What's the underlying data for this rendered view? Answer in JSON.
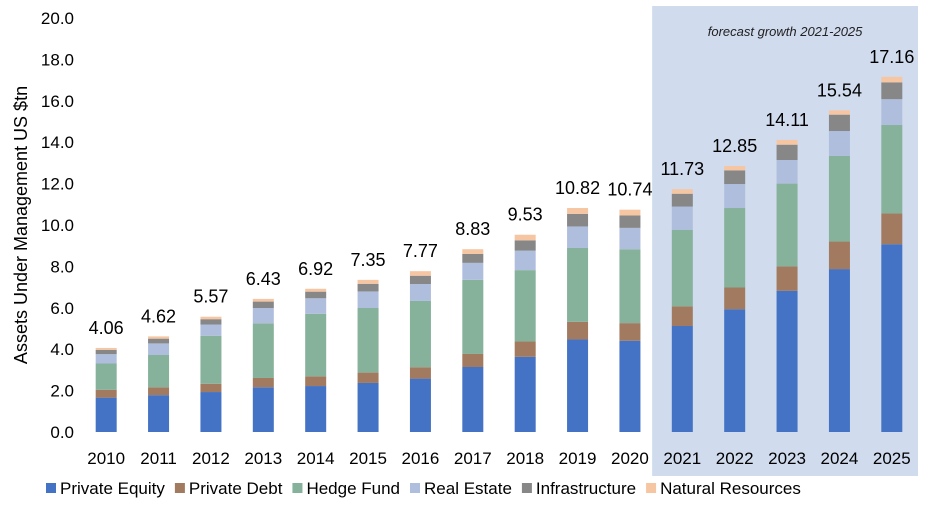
{
  "chart_data": {
    "type": "bar",
    "stacked": true,
    "categories": [
      "2010",
      "2011",
      "2012",
      "2013",
      "2014",
      "2015",
      "2016",
      "2017",
      "2018",
      "2019",
      "2020",
      "2021",
      "2022",
      "2023",
      "2024",
      "2025"
    ],
    "series": [
      {
        "name": "Private Equity",
        "color": "#4472C4",
        "values": [
          1.66,
          1.78,
          1.93,
          2.16,
          2.22,
          2.37,
          2.58,
          3.14,
          3.63,
          4.47,
          4.41,
          5.12,
          5.93,
          6.82,
          7.87,
          9.07
        ]
      },
      {
        "name": "Private Debt",
        "color": "#A17A5F",
        "values": [
          0.38,
          0.38,
          0.4,
          0.45,
          0.47,
          0.5,
          0.55,
          0.63,
          0.74,
          0.85,
          0.85,
          0.95,
          1.05,
          1.18,
          1.33,
          1.49
        ]
      },
      {
        "name": "Hedge Fund",
        "color": "#86B19A",
        "values": [
          1.27,
          1.56,
          2.32,
          2.64,
          3.02,
          3.12,
          3.2,
          3.58,
          3.45,
          3.57,
          3.57,
          3.7,
          3.84,
          4.0,
          4.14,
          4.27
        ]
      },
      {
        "name": "Real Estate",
        "color": "#AFBEDD",
        "values": [
          0.45,
          0.56,
          0.54,
          0.74,
          0.75,
          0.8,
          0.82,
          0.82,
          0.94,
          1.04,
          1.03,
          1.12,
          1.16,
          1.14,
          1.2,
          1.25
        ]
      },
      {
        "name": "Infrastructure",
        "color": "#878787",
        "values": [
          0.21,
          0.23,
          0.26,
          0.31,
          0.32,
          0.37,
          0.4,
          0.43,
          0.5,
          0.61,
          0.6,
          0.62,
          0.66,
          0.74,
          0.79,
          0.81
        ]
      },
      {
        "name": "Natural Resources",
        "color": "#F6C6A3",
        "values": [
          0.09,
          0.11,
          0.12,
          0.13,
          0.14,
          0.19,
          0.22,
          0.23,
          0.27,
          0.28,
          0.28,
          0.22,
          0.21,
          0.23,
          0.21,
          0.27
        ]
      }
    ],
    "totals": [
      4.06,
      4.62,
      5.57,
      6.43,
      6.92,
      7.35,
      7.77,
      8.83,
      9.53,
      10.82,
      10.74,
      11.73,
      12.85,
      14.11,
      15.54,
      17.16
    ],
    "total_labels": [
      "4.06",
      "4.62",
      "5.57",
      "6.43",
      "6.92",
      "7.35",
      "7.77",
      "8.83",
      "9.53",
      "10.82",
      "10.74",
      "11.73",
      "12.85",
      "14.11",
      "15.54",
      "17.16"
    ],
    "ylabel": "Assets Under Management US $tn",
    "ylim": [
      0,
      20
    ],
    "yticks": [
      "0.0",
      "2.0",
      "4.0",
      "6.0",
      "8.0",
      "10.0",
      "12.0",
      "14.0",
      "16.0",
      "18.0",
      "20.0"
    ],
    "grid": false,
    "legend_position": "bottom",
    "forecast": {
      "label": "forecast growth 2021-2025",
      "start_category": "2021",
      "end_category": "2025",
      "shade_color": "#D0DBEE"
    }
  }
}
